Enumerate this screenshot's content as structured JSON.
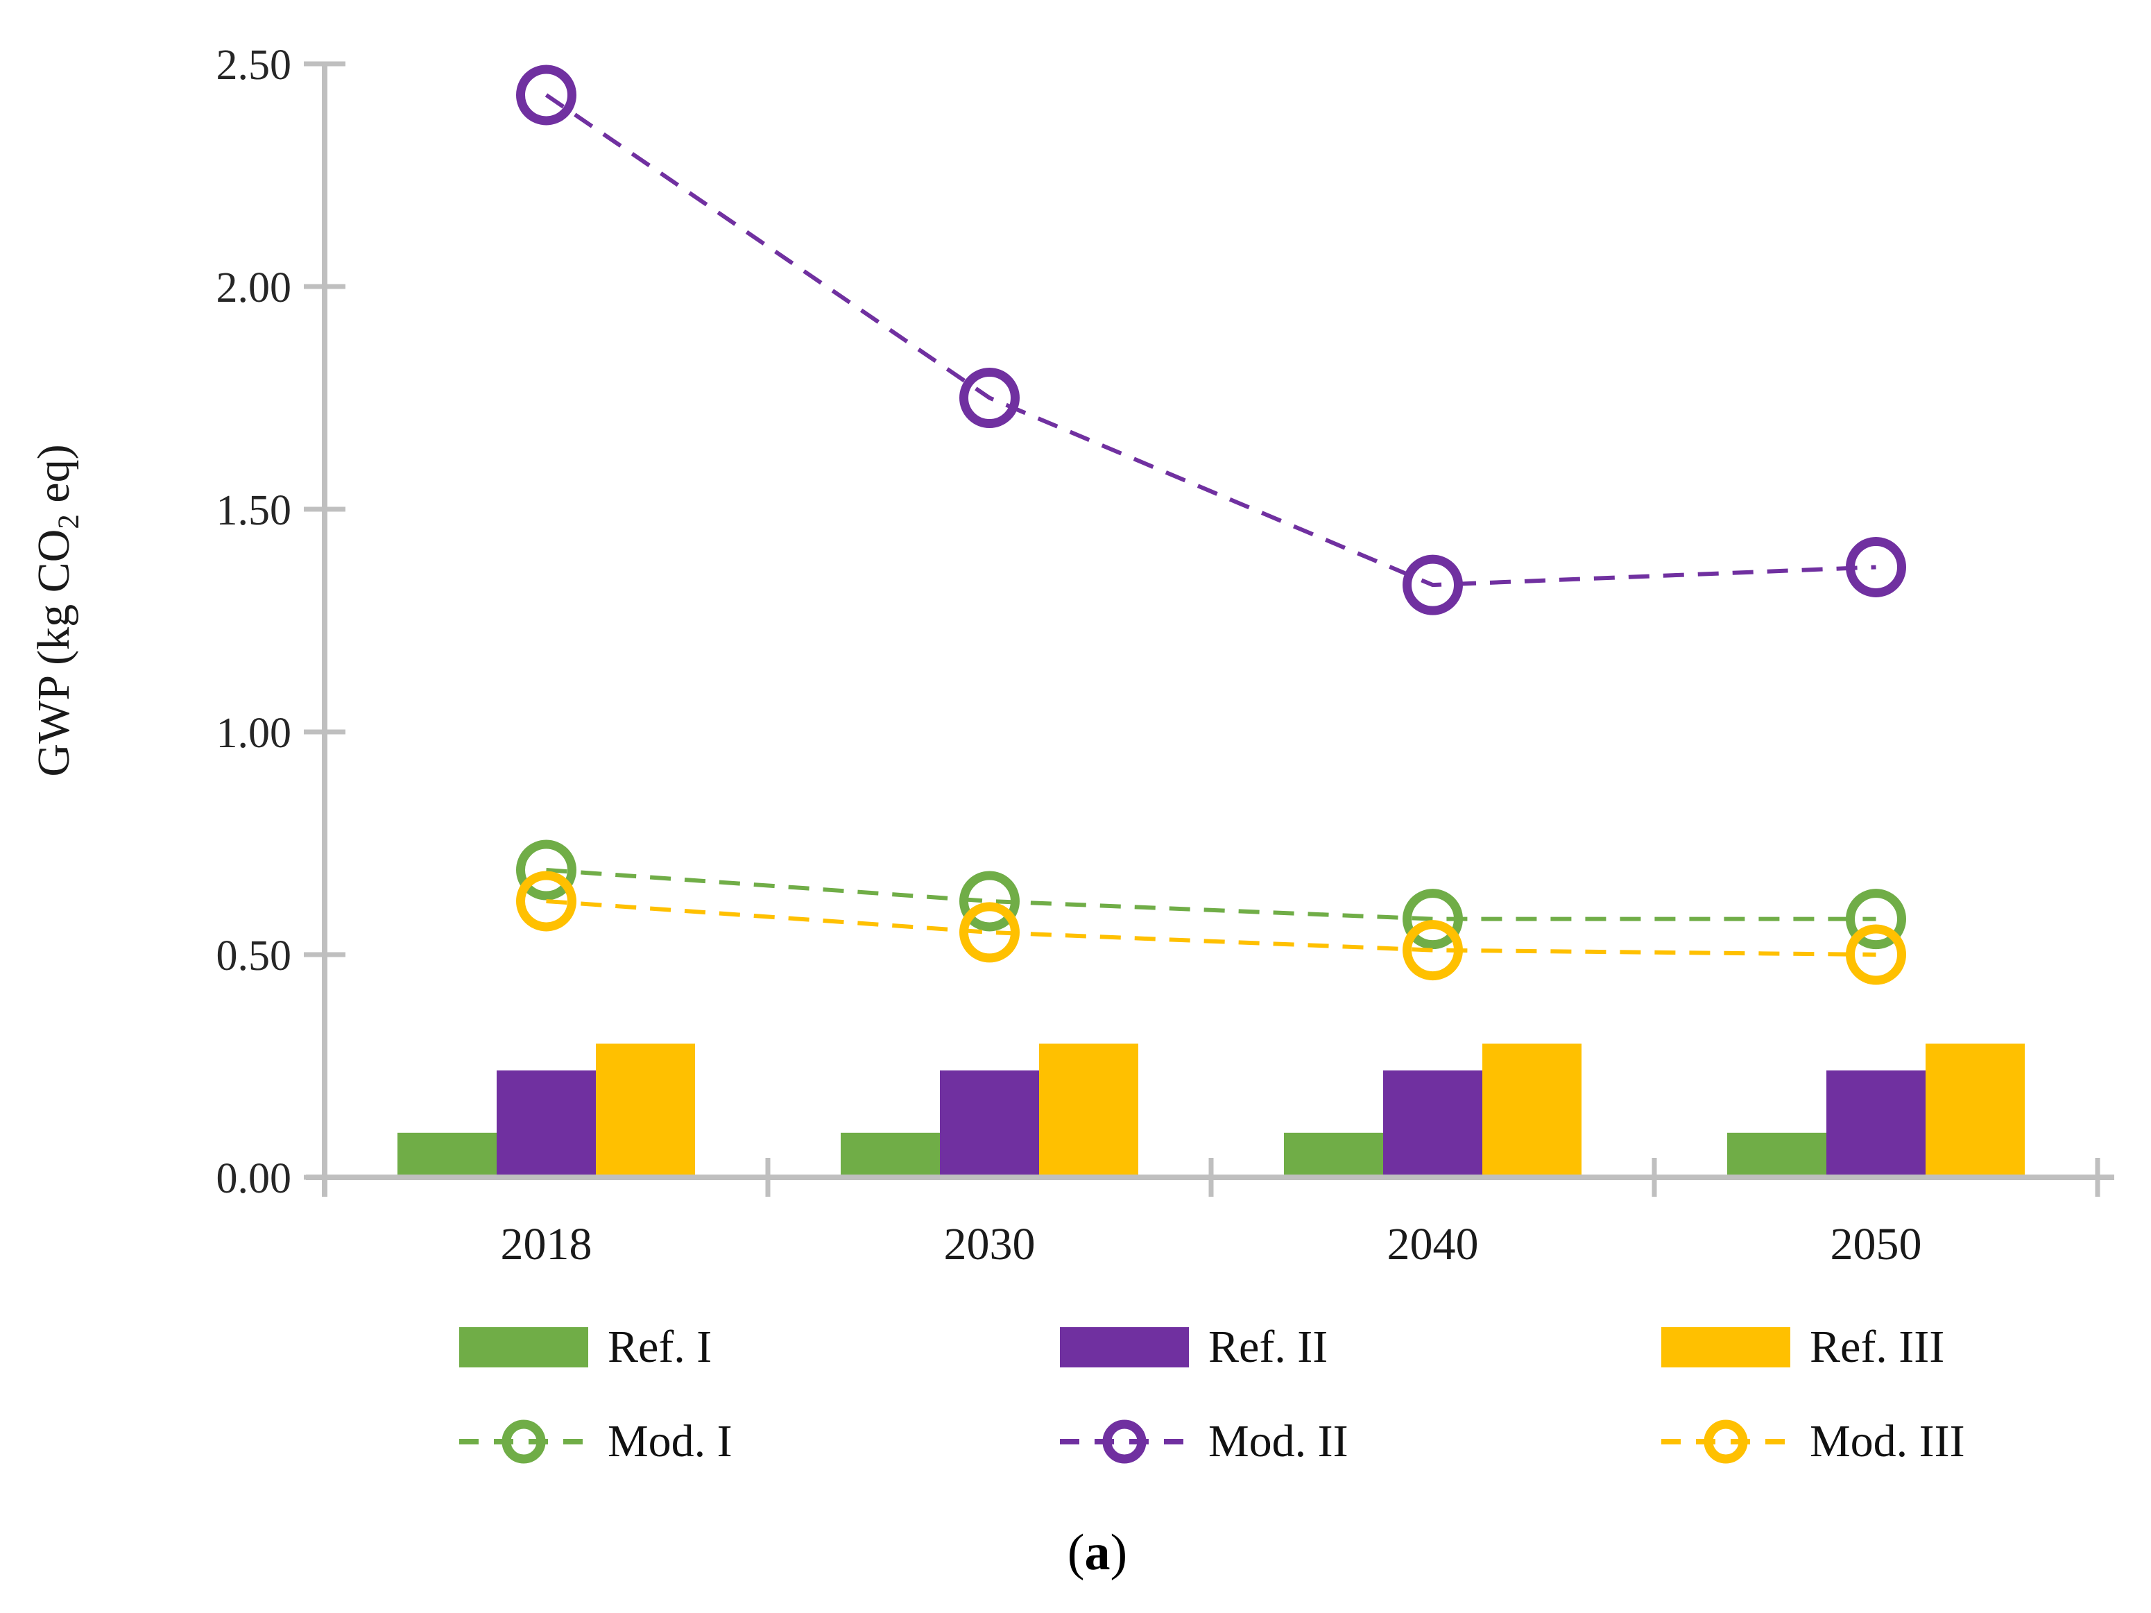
{
  "figure": {
    "ylabel_prefix": "GWP (kg CO",
    "ylabel_sub": "2",
    "ylabel_suffix": " eq)",
    "caption_open": "(",
    "caption_letter": "a",
    "caption_close": ")"
  },
  "chart_data": {
    "type": "combo-bar-line",
    "title": "",
    "xlabel": "",
    "ylabel": "GWP (kg CO2 eq)",
    "categories": [
      "2018",
      "2030",
      "2040",
      "2050"
    ],
    "bar_series": [
      {
        "name": "Ref. I",
        "color": "#70AD47",
        "values": [
          0.1,
          0.1,
          0.1,
          0.1
        ]
      },
      {
        "name": "Ref. II",
        "color": "#7030A0",
        "values": [
          0.24,
          0.24,
          0.24,
          0.24
        ]
      },
      {
        "name": "Ref. III",
        "color": "#FFC000",
        "values": [
          0.3,
          0.3,
          0.3,
          0.3
        ]
      }
    ],
    "line_series": [
      {
        "name": "Mod. I",
        "color": "#70AD47",
        "values": [
          0.69,
          0.62,
          0.58,
          0.58
        ]
      },
      {
        "name": "Mod. II",
        "color": "#7030A0",
        "values": [
          2.43,
          1.75,
          1.33,
          1.37
        ]
      },
      {
        "name": "Mod. III",
        "color": "#FFC000",
        "values": [
          0.62,
          0.55,
          0.51,
          0.5
        ]
      }
    ],
    "ylim": [
      0,
      2.5
    ],
    "y_ticks": [
      0.0,
      0.5,
      1.0,
      1.5,
      2.0,
      2.5
    ],
    "y_tick_labels": [
      "0.00",
      "0.50",
      "1.00",
      "1.50",
      "2.00",
      "2.50"
    ],
    "grid": false,
    "legend_position": "bottom",
    "axis_color": "#BFBFBF",
    "marker_style": "open-circle",
    "line_style": "dashed"
  }
}
